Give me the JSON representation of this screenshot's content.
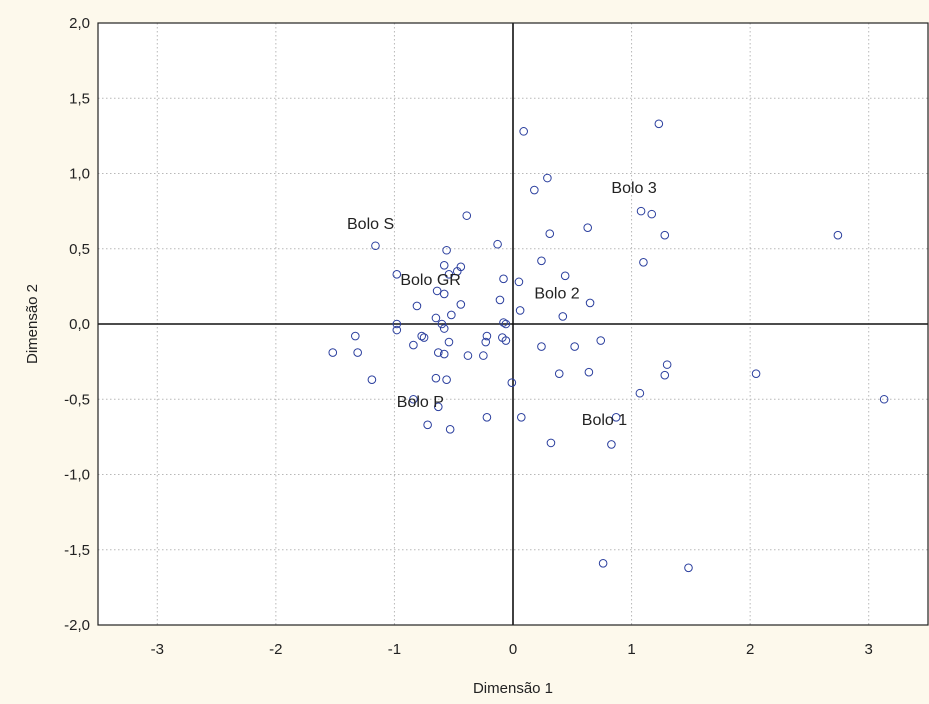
{
  "chart_data": {
    "type": "scatter",
    "title": "",
    "xlabel": "Dimensão 1",
    "ylabel": "Dimensão 2",
    "xlim": [
      -3.5,
      3.5
    ],
    "ylim": [
      -2.0,
      2.0
    ],
    "grid": true,
    "x_ticks": [
      -3,
      -2,
      -1,
      0,
      1,
      2,
      3
    ],
    "x_tick_labels": [
      "-3",
      "-2",
      "-1",
      "0",
      "1",
      "2",
      "3"
    ],
    "y_ticks": [
      -2.0,
      -1.5,
      -1.0,
      -0.5,
      0.0,
      0.5,
      1.0,
      1.5,
      2.0
    ],
    "y_tick_labels": [
      "-2,0",
      "-1,5",
      "-1,0",
      "-0,5",
      "0,0",
      "0,5",
      "1,0",
      "1,5",
      "2,0"
    ],
    "reference_lines": {
      "x": 0,
      "y": 0
    },
    "marker_color": "#2b3f9e",
    "annotations": [
      {
        "text": "Bolo S",
        "x": -1.4,
        "y": 0.63
      },
      {
        "text": "Bolo GR",
        "x": -0.95,
        "y": 0.26
      },
      {
        "text": "Bolo 2",
        "x": 0.18,
        "y": 0.17
      },
      {
        "text": "Bolo 3",
        "x": 0.83,
        "y": 0.87
      },
      {
        "text": "Bolo P",
        "x": -0.98,
        "y": -0.55
      },
      {
        "text": "Bolo 1",
        "x": 0.58,
        "y": -0.67
      }
    ],
    "points": [
      [
        0.09,
        1.28
      ],
      [
        1.23,
        1.33
      ],
      [
        0.29,
        0.97
      ],
      [
        0.18,
        0.89
      ],
      [
        1.08,
        0.75
      ],
      [
        1.17,
        0.73
      ],
      [
        1.28,
        0.59
      ],
      [
        2.74,
        0.59
      ],
      [
        0.63,
        0.64
      ],
      [
        0.31,
        0.6
      ],
      [
        -0.39,
        0.72
      ],
      [
        -0.13,
        0.53
      ],
      [
        -1.16,
        0.52
      ],
      [
        -0.56,
        0.49
      ],
      [
        0.24,
        0.42
      ],
      [
        1.1,
        0.41
      ],
      [
        -0.58,
        0.39
      ],
      [
        -0.44,
        0.38
      ],
      [
        -0.47,
        0.35
      ],
      [
        -0.54,
        0.33
      ],
      [
        -0.98,
        0.33
      ],
      [
        0.44,
        0.32
      ],
      [
        -0.08,
        0.3
      ],
      [
        0.05,
        0.28
      ],
      [
        -0.64,
        0.22
      ],
      [
        -0.58,
        0.2
      ],
      [
        -0.11,
        0.16
      ],
      [
        0.65,
        0.14
      ],
      [
        -0.44,
        0.13
      ],
      [
        -0.81,
        0.12
      ],
      [
        0.06,
        0.09
      ],
      [
        -0.52,
        0.06
      ],
      [
        0.42,
        0.05
      ],
      [
        -0.65,
        0.04
      ],
      [
        -0.08,
        0.01
      ],
      [
        -0.6,
        0.0
      ],
      [
        -0.98,
        0.0
      ],
      [
        -0.06,
        0.0
      ],
      [
        -0.58,
        -0.03
      ],
      [
        -0.98,
        -0.04
      ],
      [
        -0.09,
        -0.09
      ],
      [
        -0.22,
        -0.08
      ],
      [
        -0.77,
        -0.08
      ],
      [
        -0.75,
        -0.09
      ],
      [
        -1.33,
        -0.08
      ],
      [
        -0.06,
        -0.11
      ],
      [
        -0.54,
        -0.12
      ],
      [
        -0.23,
        -0.12
      ],
      [
        0.74,
        -0.11
      ],
      [
        -0.84,
        -0.14
      ],
      [
        0.24,
        -0.15
      ],
      [
        0.52,
        -0.15
      ],
      [
        -1.52,
        -0.19
      ],
      [
        -1.31,
        -0.19
      ],
      [
        -0.63,
        -0.19
      ],
      [
        -0.58,
        -0.2
      ],
      [
        -0.38,
        -0.21
      ],
      [
        -0.25,
        -0.21
      ],
      [
        1.3,
        -0.27
      ],
      [
        0.64,
        -0.32
      ],
      [
        0.39,
        -0.33
      ],
      [
        1.28,
        -0.34
      ],
      [
        2.05,
        -0.33
      ],
      [
        -0.65,
        -0.36
      ],
      [
        -0.56,
        -0.37
      ],
      [
        -1.19,
        -0.37
      ],
      [
        -0.01,
        -0.39
      ],
      [
        1.07,
        -0.46
      ],
      [
        -0.84,
        -0.5
      ],
      [
        3.13,
        -0.5
      ],
      [
        -0.63,
        -0.55
      ],
      [
        -0.22,
        -0.62
      ],
      [
        0.07,
        -0.62
      ],
      [
        0.87,
        -0.62
      ],
      [
        -0.72,
        -0.67
      ],
      [
        -0.53,
        -0.7
      ],
      [
        0.32,
        -0.79
      ],
      [
        0.83,
        -0.8
      ],
      [
        0.76,
        -1.59
      ],
      [
        1.48,
        -1.62
      ]
    ]
  }
}
